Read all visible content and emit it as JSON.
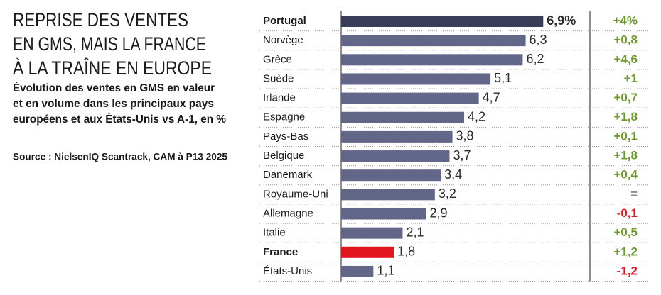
{
  "chart_data": {
    "type": "bar",
    "title": [
      "REPRISE DES VENTES",
      "EN GMS, MAIS LA FRANCE",
      "À LA TRAÎNE EN EUROPE"
    ],
    "subtitle": [
      "Évolution des ventes en GMS en valeur",
      "et en volume dans les principaux pays",
      "européens et aux États-Unis vs A-1, en %"
    ],
    "source": "Source : NielsenIQ Scantrack, CAM à P13 2025",
    "categories": [
      "Portugal",
      "Norvège",
      "Grèce",
      "Suède",
      "Irlande",
      "Espagne",
      "Pays-Bas",
      "Belgique",
      "Danemark",
      "Royaume-Uni",
      "Allemagne",
      "Italie",
      "France",
      "États-Unis"
    ],
    "color": "#62678a",
    "colors": [
      "#3a3d58",
      "#62678a",
      "#62678a",
      "#62678a",
      "#62678a",
      "#62678a",
      "#62678a",
      "#62678a",
      "#62678a",
      "#62678a",
      "#62678a",
      "#62678a",
      "#e2161e",
      "#62678a"
    ],
    "values": [
      6.9,
      6.3,
      6.2,
      5.1,
      4.7,
      4.2,
      3.8,
      3.7,
      3.4,
      3.2,
      2.9,
      2.1,
      1.8,
      1.1
    ],
    "value_labels": [
      "6,9%",
      "6,3",
      "6,2",
      "5,1",
      "4,7",
      "4,2",
      "3,8",
      "3,7",
      "3,4",
      "3,2",
      "2,9",
      "2,1",
      "1,8",
      "1,1"
    ],
    "volume": {
      "values": [
        4,
        0.8,
        4.6,
        1,
        0.7,
        1.8,
        0.1,
        1.8,
        0.4,
        0,
        -0.1,
        0.5,
        1.2,
        -1.2
      ],
      "value_labels": [
        "+4%",
        "+0,8",
        "+4,6",
        "+1",
        "+0,7",
        "+1,8",
        "+0,1",
        "+1,8",
        "+0,4",
        "=",
        "-0,1",
        "+0,5",
        "+1,2",
        "-1,2"
      ],
      "positive_color": "#6b9a2a",
      "negative_color": "#e2161e",
      "zero_color": "#8a8a8a"
    }
  }
}
